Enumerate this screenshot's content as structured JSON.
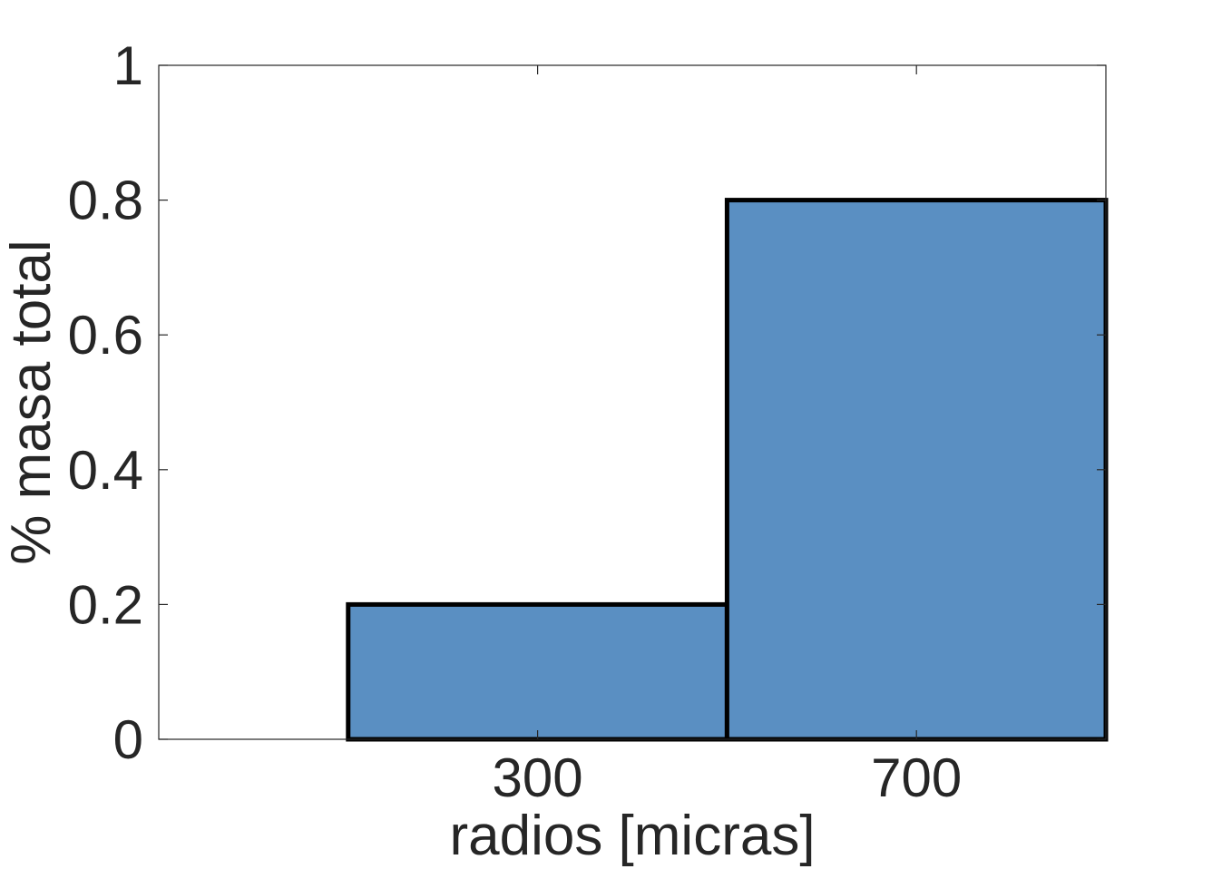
{
  "chart_data": {
    "type": "bar",
    "categories": [
      "300",
      "700"
    ],
    "values": [
      0.2,
      0.8
    ],
    "title": "",
    "xlabel": "radios [micras]",
    "ylabel": "% masa total",
    "ylim": [
      0,
      1
    ],
    "yticks": [
      "0",
      "0.2",
      "0.4",
      "0.6",
      "0.8",
      "1"
    ],
    "grid": false,
    "legend": "none",
    "bar_color": "#5A8FC2",
    "edge_color": "#000000",
    "text_color": "#262626"
  }
}
